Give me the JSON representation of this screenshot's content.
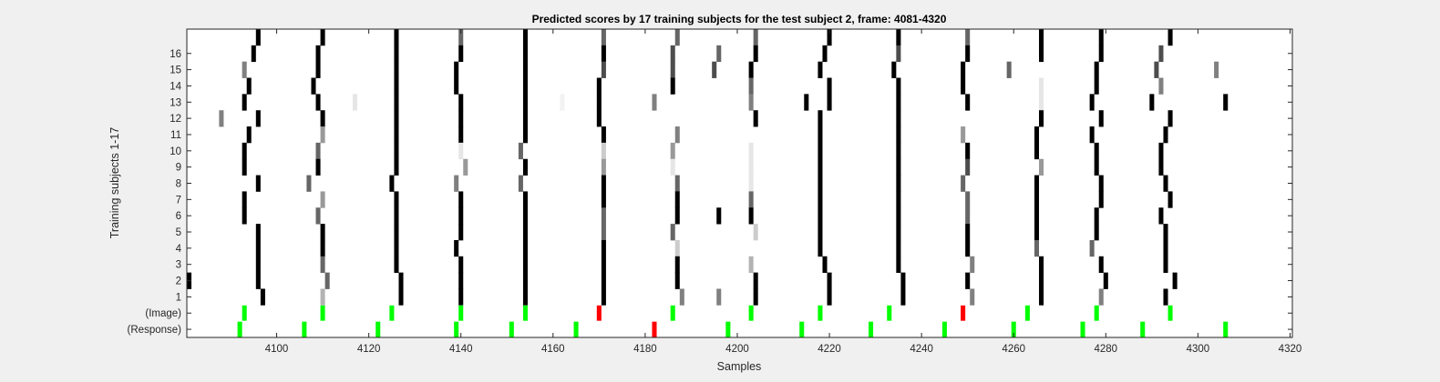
{
  "chart_data": {
    "type": "heatmap",
    "title": "Predicted scores by 17 training subjects for the test subject 2, frame: 4081-4320",
    "xlabel": "Samples",
    "ylabel": "Training subjects 1-17",
    "xlim": [
      4081,
      4320
    ],
    "x_ticks": [
      4100,
      4120,
      4140,
      4160,
      4180,
      4200,
      4220,
      4240,
      4260,
      4280,
      4300,
      4320
    ],
    "rows": [
      "17",
      "16",
      "15",
      "14",
      "13",
      "12",
      "11",
      "10",
      "9",
      "8",
      "7",
      "6",
      "5",
      "4",
      "3",
      "2",
      "1",
      "(Image)",
      "(Response)"
    ],
    "y_tick_labels": [
      "16",
      "15",
      "14",
      "13",
      "12",
      "11",
      "10",
      "9",
      "8",
      "7",
      "6",
      "5",
      "4",
      "3",
      "2",
      "1",
      "(Image)",
      "(Response)"
    ],
    "marker_colors": {
      "correct": "#00ff00",
      "wrong": "#ff0000"
    },
    "score_color_scale": "white = 0, black = 1",
    "rows_data": {
      "17": [
        [
          4096,
          1
        ],
        [
          4110,
          1
        ],
        [
          4126,
          1
        ],
        [
          4140,
          0.6
        ],
        [
          4154,
          1
        ],
        [
          4171,
          0.6
        ],
        [
          4187,
          0.6
        ],
        [
          4204,
          0.6
        ],
        [
          4220,
          1
        ],
        [
          4235,
          1
        ],
        [
          4250,
          0.6
        ],
        [
          4266,
          1
        ],
        [
          4279,
          1
        ],
        [
          4294,
          1
        ]
      ],
      "16": [
        [
          4095,
          1
        ],
        [
          4109,
          1
        ],
        [
          4126,
          1
        ],
        [
          4140,
          1
        ],
        [
          4154,
          1
        ],
        [
          4171,
          1
        ],
        [
          4186,
          0.7
        ],
        [
          4196,
          0.6
        ],
        [
          4204,
          1
        ],
        [
          4219,
          1
        ],
        [
          4235,
          0.7
        ],
        [
          4250,
          1
        ],
        [
          4266,
          1
        ],
        [
          4279,
          1
        ],
        [
          4292,
          0.7
        ]
      ],
      "15": [
        [
          4093,
          0.5
        ],
        [
          4109,
          1
        ],
        [
          4126,
          1
        ],
        [
          4139,
          1
        ],
        [
          4154,
          1
        ],
        [
          4171,
          0.7
        ],
        [
          4186,
          0.7
        ],
        [
          4195,
          0.7
        ],
        [
          4203,
          1
        ],
        [
          4218,
          1
        ],
        [
          4234,
          1
        ],
        [
          4249,
          1
        ],
        [
          4259,
          0.6
        ],
        [
          4278,
          1
        ],
        [
          4291,
          0.7
        ],
        [
          4304,
          0.5
        ]
      ],
      "14": [
        [
          4094,
          1
        ],
        [
          4108,
          1
        ],
        [
          4126,
          1
        ],
        [
          4139,
          1
        ],
        [
          4154,
          1
        ],
        [
          4170,
          1
        ],
        [
          4186,
          1
        ],
        [
          4203,
          0.6
        ],
        [
          4220,
          1
        ],
        [
          4235,
          1
        ],
        [
          4249,
          1
        ],
        [
          4266,
          0.1
        ],
        [
          4278,
          1
        ],
        [
          4292,
          0.5
        ]
      ],
      "13": [
        [
          4093,
          1
        ],
        [
          4109,
          1
        ],
        [
          4117,
          0.1
        ],
        [
          4126,
          1
        ],
        [
          4140,
          1
        ],
        [
          4154,
          1
        ],
        [
          4162,
          0.05
        ],
        [
          4170,
          1
        ],
        [
          4182,
          0.5
        ],
        [
          4203,
          0.5
        ],
        [
          4215,
          1
        ],
        [
          4220,
          1
        ],
        [
          4235,
          1
        ],
        [
          4250,
          1
        ],
        [
          4266,
          0.1
        ],
        [
          4277,
          1
        ],
        [
          4290,
          1
        ],
        [
          4306,
          1
        ]
      ],
      "12": [
        [
          4088,
          0.5
        ],
        [
          4096,
          1
        ],
        [
          4110,
          1
        ],
        [
          4126,
          1
        ],
        [
          4140,
          1
        ],
        [
          4154,
          1
        ],
        [
          4170,
          1
        ],
        [
          4204,
          1
        ],
        [
          4218,
          1
        ],
        [
          4235,
          1
        ],
        [
          4266,
          1
        ],
        [
          4279,
          1
        ],
        [
          4294,
          1
        ]
      ],
      "11": [
        [
          4094,
          1
        ],
        [
          4110,
          0.4
        ],
        [
          4126,
          1
        ],
        [
          4140,
          1
        ],
        [
          4154,
          1
        ],
        [
          4171,
          1
        ],
        [
          4187,
          0.5
        ],
        [
          4218,
          1
        ],
        [
          4235,
          1
        ],
        [
          4249,
          0.4
        ],
        [
          4265,
          1
        ],
        [
          4277,
          1
        ],
        [
          4293,
          1
        ]
      ],
      "10": [
        [
          4093,
          1
        ],
        [
          4109,
          0.6
        ],
        [
          4126,
          1
        ],
        [
          4140,
          0.1
        ],
        [
          4153,
          0.6
        ],
        [
          4171,
          0.2
        ],
        [
          4186,
          0.4
        ],
        [
          4203,
          0.1
        ],
        [
          4218,
          1
        ],
        [
          4235,
          1
        ],
        [
          4250,
          1
        ],
        [
          4265,
          1
        ],
        [
          4278,
          1
        ],
        [
          4292,
          1
        ]
      ],
      "9": [
        [
          4093,
          1
        ],
        [
          4109,
          1
        ],
        [
          4126,
          1
        ],
        [
          4141,
          0.4
        ],
        [
          4154,
          1
        ],
        [
          4171,
          0.4
        ],
        [
          4186,
          0.1
        ],
        [
          4203,
          0.1
        ],
        [
          4218,
          1
        ],
        [
          4235,
          1
        ],
        [
          4250,
          0.7
        ],
        [
          4266,
          0.4
        ],
        [
          4278,
          1
        ],
        [
          4292,
          1
        ]
      ],
      "8": [
        [
          4096,
          1
        ],
        [
          4107,
          0.6
        ],
        [
          4125,
          1
        ],
        [
          4139,
          0.5
        ],
        [
          4153,
          0.6
        ],
        [
          4171,
          1
        ],
        [
          4187,
          0.6
        ],
        [
          4203,
          0.1
        ],
        [
          4218,
          1
        ],
        [
          4235,
          1
        ],
        [
          4249,
          0.6
        ],
        [
          4265,
          1
        ],
        [
          4279,
          1
        ],
        [
          4293,
          1
        ]
      ],
      "7": [
        [
          4093,
          1
        ],
        [
          4110,
          0.4
        ],
        [
          4126,
          1
        ],
        [
          4140,
          1
        ],
        [
          4154,
          1
        ],
        [
          4171,
          1
        ],
        [
          4187,
          1
        ],
        [
          4203,
          0.6
        ],
        [
          4218,
          1
        ],
        [
          4235,
          1
        ],
        [
          4250,
          0.6
        ],
        [
          4265,
          1
        ],
        [
          4279,
          1
        ],
        [
          4294,
          1
        ]
      ],
      "6": [
        [
          4093,
          1
        ],
        [
          4109,
          0.6
        ],
        [
          4126,
          1
        ],
        [
          4140,
          1
        ],
        [
          4154,
          1
        ],
        [
          4171,
          0.6
        ],
        [
          4187,
          1
        ],
        [
          4196,
          1
        ],
        [
          4203,
          1
        ],
        [
          4218,
          1
        ],
        [
          4235,
          1
        ],
        [
          4250,
          0.6
        ],
        [
          4265,
          1
        ],
        [
          4278,
          1
        ],
        [
          4292,
          1
        ]
      ],
      "5": [
        [
          4096,
          1
        ],
        [
          4110,
          1
        ],
        [
          4126,
          1
        ],
        [
          4140,
          1
        ],
        [
          4154,
          1
        ],
        [
          4171,
          0.6
        ],
        [
          4186,
          0.6
        ],
        [
          4204,
          0.2
        ],
        [
          4218,
          1
        ],
        [
          4235,
          1
        ],
        [
          4250,
          1
        ],
        [
          4265,
          1
        ],
        [
          4278,
          1
        ],
        [
          4293,
          1
        ]
      ],
      "4": [
        [
          4096,
          1
        ],
        [
          4110,
          1
        ],
        [
          4126,
          1
        ],
        [
          4139,
          1
        ],
        [
          4154,
          1
        ],
        [
          4171,
          1
        ],
        [
          4187,
          0.2
        ],
        [
          4218,
          1
        ],
        [
          4235,
          1
        ],
        [
          4250,
          1
        ],
        [
          4265,
          0.6
        ],
        [
          4277,
          0.6
        ],
        [
          4293,
          1
        ]
      ],
      "3": [
        [
          4096,
          1
        ],
        [
          4110,
          0.6
        ],
        [
          4126,
          1
        ],
        [
          4140,
          1
        ],
        [
          4154,
          1
        ],
        [
          4171,
          1
        ],
        [
          4187,
          1
        ],
        [
          4203,
          0.3
        ],
        [
          4219,
          1
        ],
        [
          4235,
          1
        ],
        [
          4251,
          0.5
        ],
        [
          4266,
          1
        ],
        [
          4279,
          1
        ],
        [
          4293,
          1
        ]
      ],
      "2": [
        [
          4081,
          1
        ],
        [
          4096,
          1
        ],
        [
          4111,
          0.6
        ],
        [
          4127,
          1
        ],
        [
          4140,
          1
        ],
        [
          4154,
          1
        ],
        [
          4171,
          1
        ],
        [
          4187,
          1
        ],
        [
          4204,
          1
        ],
        [
          4220,
          1
        ],
        [
          4236,
          1
        ],
        [
          4250,
          1
        ],
        [
          4266,
          1
        ],
        [
          4280,
          1
        ],
        [
          4295,
          1
        ]
      ],
      "1": [
        [
          4097,
          1
        ],
        [
          4110,
          0.3
        ],
        [
          4127,
          1
        ],
        [
          4140,
          1
        ],
        [
          4154,
          1
        ],
        [
          4171,
          1
        ],
        [
          4188,
          0.5
        ],
        [
          4196,
          0.5
        ],
        [
          4204,
          1
        ],
        [
          4220,
          1
        ],
        [
          4236,
          1
        ],
        [
          4251,
          0.5
        ],
        [
          4266,
          1
        ],
        [
          4279,
          0.5
        ],
        [
          4293,
          1
        ]
      ]
    },
    "image_markers": [
      {
        "x": 4093,
        "status": "correct"
      },
      {
        "x": 4110,
        "status": "correct"
      },
      {
        "x": 4125,
        "status": "correct"
      },
      {
        "x": 4140,
        "status": "correct"
      },
      {
        "x": 4154,
        "status": "correct"
      },
      {
        "x": 4170,
        "status": "wrong"
      },
      {
        "x": 4186,
        "status": "correct"
      },
      {
        "x": 4203,
        "status": "correct"
      },
      {
        "x": 4218,
        "status": "correct"
      },
      {
        "x": 4233,
        "status": "correct"
      },
      {
        "x": 4249,
        "status": "wrong"
      },
      {
        "x": 4263,
        "status": "correct"
      },
      {
        "x": 4278,
        "status": "correct"
      },
      {
        "x": 4294,
        "status": "correct"
      }
    ],
    "response_markers": [
      {
        "x": 4092,
        "status": "correct"
      },
      {
        "x": 4106,
        "status": "correct"
      },
      {
        "x": 4122,
        "status": "correct"
      },
      {
        "x": 4139,
        "status": "correct"
      },
      {
        "x": 4151,
        "status": "correct"
      },
      {
        "x": 4165,
        "status": "correct"
      },
      {
        "x": 4182,
        "status": "wrong"
      },
      {
        "x": 4198,
        "status": "correct"
      },
      {
        "x": 4214,
        "status": "correct"
      },
      {
        "x": 4229,
        "status": "correct"
      },
      {
        "x": 4245,
        "status": "correct"
      },
      {
        "x": 4260,
        "status": "correct"
      },
      {
        "x": 4275,
        "status": "correct"
      },
      {
        "x": 4288,
        "status": "correct"
      },
      {
        "x": 4306,
        "status": "correct"
      }
    ]
  }
}
